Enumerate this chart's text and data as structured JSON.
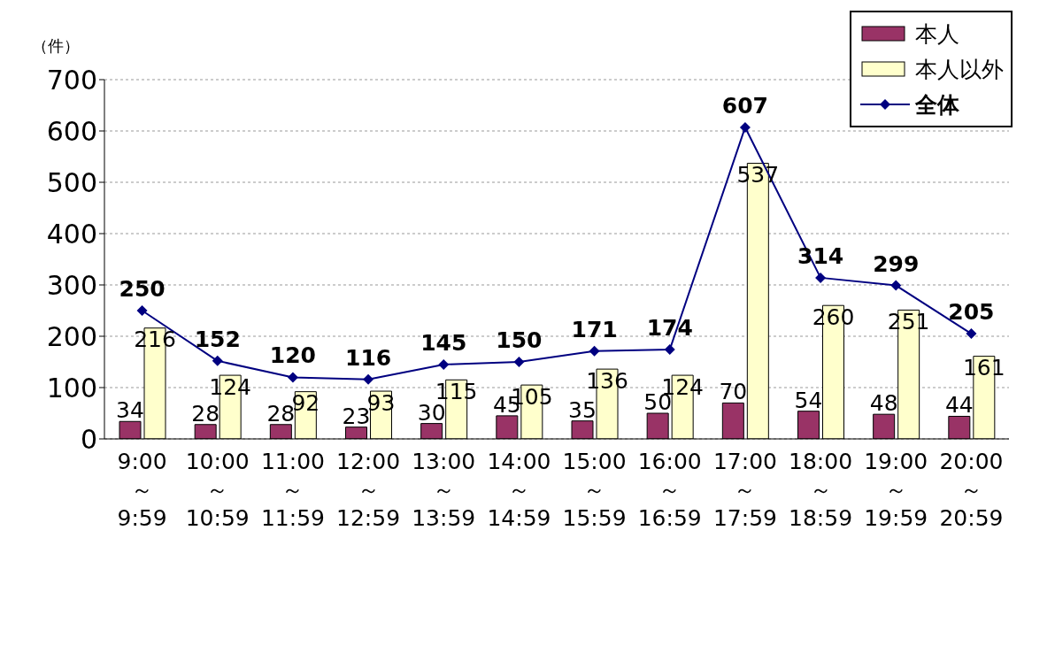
{
  "chart_data": {
    "type": "bar",
    "ylabel": "（件）",
    "categories": [
      "9:00\n～\n9:59",
      "10:00\n～\n10:59",
      "11:00\n～\n11:59",
      "12:00\n～\n12:59",
      "13:00\n～\n13:59",
      "14:00\n～\n14:59",
      "15:00\n～\n15:59",
      "16:00\n～\n16:59",
      "17:00\n～\n17:59",
      "18:00\n～\n18:59",
      "19:00\n～\n19:59",
      "20:00\n～\n20:59"
    ],
    "series": [
      {
        "name": "本人",
        "color": "#993366",
        "values": [
          34,
          28,
          28,
          23,
          30,
          45,
          35,
          50,
          70,
          54,
          48,
          44
        ]
      },
      {
        "name": "本人以外",
        "color": "#ffffcc",
        "values": [
          216,
          124,
          92,
          93,
          115,
          105,
          136,
          124,
          537,
          260,
          251,
          161
        ]
      },
      {
        "name": "全体",
        "type": "line",
        "color": "#000080",
        "values": [
          250,
          152,
          120,
          116,
          145,
          150,
          171,
          174,
          607,
          314,
          299,
          205
        ]
      }
    ],
    "ylim": [
      0,
      700
    ],
    "yticks": [
      0,
      100,
      200,
      300,
      400,
      500,
      600,
      700
    ],
    "grid": "y",
    "legend": "top right",
    "data_labels": true,
    "marker": "diamond",
    "line_style": "solid"
  }
}
